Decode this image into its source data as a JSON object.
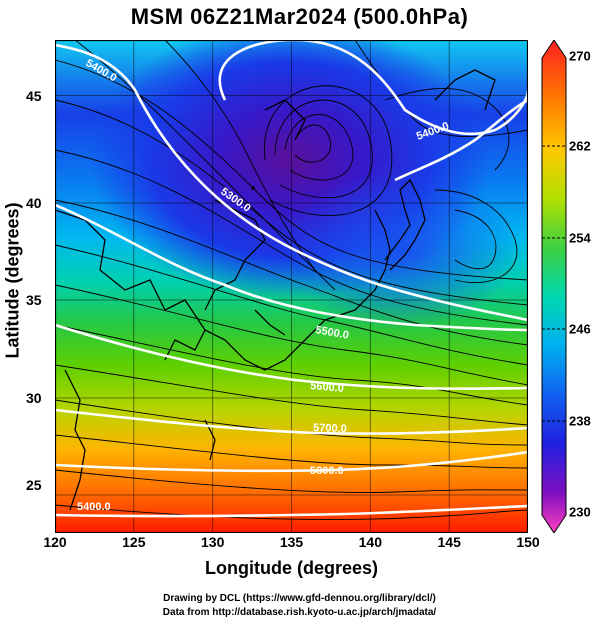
{
  "title": "MSM 06Z21Mar2024 (500.0hPa)",
  "xlabel": "Longitude (degrees)",
  "ylabel": "Latitude  (degrees)",
  "xticks": [
    "120",
    "125",
    "130",
    "135",
    "140",
    "145",
    "150"
  ],
  "yticks": [
    "45",
    "40",
    "35",
    "30",
    "25"
  ],
  "colorbar_ticks": [
    "270",
    "262",
    "254",
    "246",
    "238",
    "230"
  ],
  "contour_labels": [
    "5400.0",
    "5300.0",
    "5400.0",
    "5500.0",
    "5600.0",
    "5700.0",
    "5800.0",
    "5400.0"
  ],
  "credit_line1": "Drawing by DCL (https://www.gfd-dennou.org/library/dcl/)",
  "credit_line2": "Data from http://database.rish.kyoto-u.ac.jp/arch/jmadata/",
  "colorbar_range": [
    230,
    270
  ],
  "lon_range": [
    120,
    150
  ],
  "lat_range": [
    22.7,
    48
  ]
}
